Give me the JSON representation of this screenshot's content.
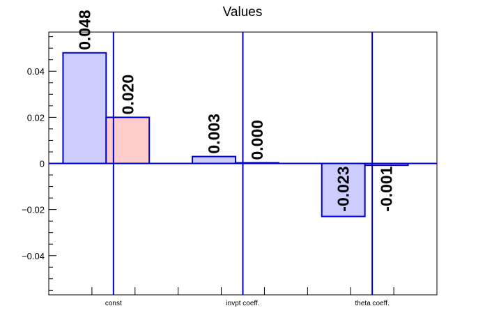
{
  "chart_data": {
    "type": "bar",
    "title": "Values",
    "xlabel": "",
    "ylabel": "",
    "categories": [
      "const",
      "invpt coeff.",
      "theta coeff."
    ],
    "series": [
      {
        "values": [
          0.048,
          0.003,
          -0.023
        ],
        "labels": [
          "0.048",
          "0.003",
          "-0.023"
        ],
        "fill": "#ccccff",
        "stroke": "#0000cc"
      },
      {
        "values": [
          0.02,
          0.0003,
          -0.0008
        ],
        "labels": [
          "0.020",
          "0.000",
          "-0.001"
        ],
        "fill": "#ffcccc",
        "stroke": "#0000cc"
      }
    ],
    "ylim": [
      -0.057,
      0.057
    ],
    "yticks": [
      {
        "value": 0.04,
        "label": "0.04"
      },
      {
        "value": 0.02,
        "label": "0.02"
      },
      {
        "value": 0,
        "label": "0"
      },
      {
        "value": -0.02,
        "label": "−0.02"
      },
      {
        "value": -0.04,
        "label": "−0.04"
      }
    ],
    "grid": false,
    "legend": "none",
    "colors": {
      "axis": "#000000",
      "line": "#0000cc"
    }
  }
}
